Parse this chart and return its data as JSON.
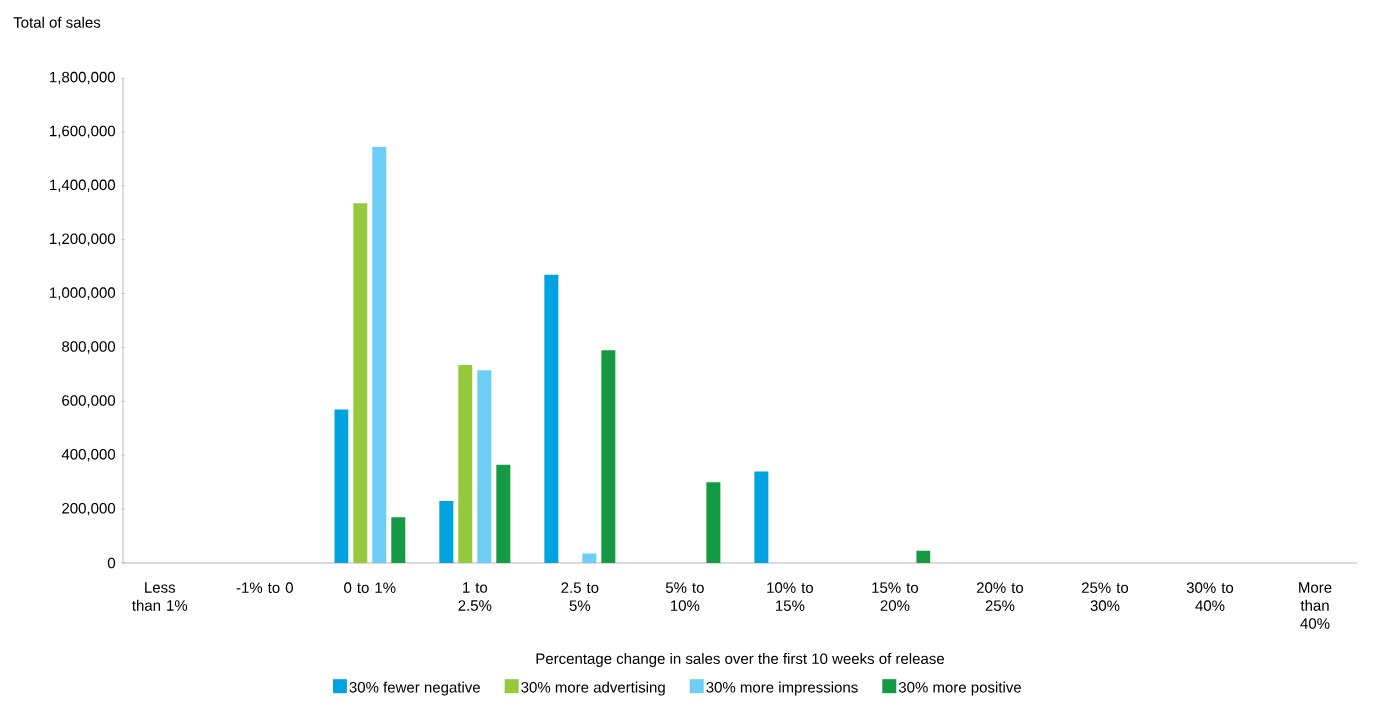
{
  "chart_data": {
    "type": "bar",
    "ylabel": "Total of sales",
    "xlabel": "Percentage change in sales over the first 10 weeks of release",
    "categories": [
      "Less than 1%",
      "-1% to 0",
      "0 to 1%",
      "1 to 2.5%",
      "2.5 to 5%",
      "5% to 10%",
      "10% to 15%",
      "15% to 20%",
      "20% to 25%",
      "25% to 30%",
      "30% to 40%",
      "More than 40%"
    ],
    "series": [
      {
        "name": "30% fewer negative",
        "color": "#00a3e0",
        "values": [
          null,
          null,
          570000,
          230000,
          1070000,
          null,
          340000,
          null,
          null,
          null,
          null,
          null
        ]
      },
      {
        "name": "30% more advertising",
        "color": "#97c93d",
        "values": [
          null,
          null,
          1335000,
          735000,
          null,
          null,
          null,
          null,
          null,
          null,
          null,
          null
        ]
      },
      {
        "name": "30% more impressions",
        "color": "#6dcff6",
        "values": [
          null,
          null,
          1545000,
          715000,
          35000,
          null,
          null,
          null,
          null,
          null,
          null,
          null
        ]
      },
      {
        "name": "30% more positive",
        "color": "#139a43",
        "values": [
          null,
          null,
          170000,
          365000,
          790000,
          300000,
          null,
          45000,
          null,
          null,
          null,
          null
        ]
      }
    ],
    "ylim": [
      0,
      1800000
    ],
    "yticks": [
      {
        "value": 0,
        "label": "0"
      },
      {
        "value": 200000,
        "label": "200,000"
      },
      {
        "value": 400000,
        "label": "400,000"
      },
      {
        "value": 600000,
        "label": "600,000"
      },
      {
        "value": 800000,
        "label": "800,000"
      },
      {
        "value": 1000000,
        "label": "1,000,000"
      },
      {
        "value": 1200000,
        "label": "1,200,000"
      },
      {
        "value": 1400000,
        "label": "1,400,000"
      },
      {
        "value": 1600000,
        "label": "1,600,000"
      },
      {
        "value": 1800000,
        "label": "1,800,000"
      }
    ],
    "grid": false,
    "legend": "bottom"
  }
}
